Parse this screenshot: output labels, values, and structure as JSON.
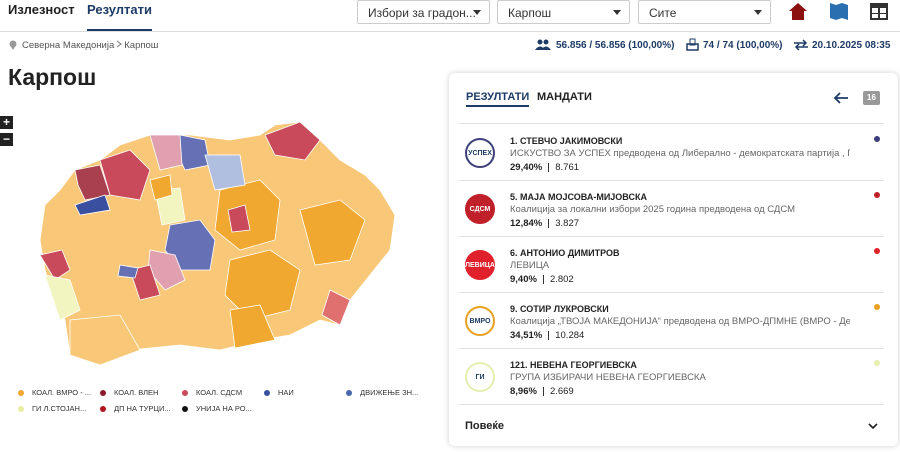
{
  "nav": {
    "tabs": [
      "Излезност",
      "Резултати"
    ],
    "dropdowns": [
      "Избори за градон...",
      "Карпош",
      "Сите"
    ]
  },
  "breadcrumb": [
    "Северна Македонија",
    "Карпош"
  ],
  "stats": {
    "voters": "56.856 / 56.856 (100,00%)",
    "stations": "74 / 74 (100,00%)",
    "updated": "20.10.2025 08:35"
  },
  "title": "Карпош",
  "map": {
    "zoom": [
      "+",
      "−"
    ],
    "legend": [
      {
        "label": "КОАЛ. ВМРО - ...",
        "color": "#f0a830"
      },
      {
        "label": "КОАЛ. ВЛЕН",
        "color": "#8b1a2b"
      },
      {
        "label": "КОАЛ. СДСМ",
        "color": "#c94a5a"
      },
      {
        "label": "НАИ",
        "color": "#3a4fa0"
      },
      {
        "label": "ДВИЖЕЊЕ ЗН...",
        "color": "#4a68b0"
      },
      {
        "label": "ГИ Л.СТОЈАН...",
        "color": "#e8eea0"
      },
      {
        "label": "ДП НА ТУРЦИ...",
        "color": "#b0141e"
      },
      {
        "label": "УНИЈА НА РО...",
        "color": "#111111"
      }
    ]
  },
  "panel": {
    "tabs": [
      "РЕЗУЛТАТИ",
      "МАНДАТИ"
    ],
    "badge": "16",
    "more": "Повеќе",
    "candidates": [
      {
        "name": "1. СТЕВЧО ЈАКИМОВСКИ",
        "party": "ИСКУСТВО ЗА УСПЕХ предводена од Либерално - демократската партија , Гра...",
        "percent": "29,40%",
        "votes": "8.761",
        "color": "#3d3f7a",
        "logo": "УСПЕХ"
      },
      {
        "name": "5. МАЈА МОЈСОВА-МИЈОВСКА",
        "party": "Коалиција за локални избори 2025 година предводена од СДСМ",
        "percent": "12,84%",
        "votes": "3.827",
        "color": "#c0202a",
        "logo": "СДСМ"
      },
      {
        "name": "6. АНТОНИО ДИМИТРОВ",
        "party": "ЛЕВИЦА",
        "percent": "9,40%",
        "votes": "2.802",
        "color": "#e0202a",
        "logo": "ЛЕВИЦА"
      },
      {
        "name": "9. СОТИР ЛУКРОВСКИ",
        "party": "Коалиција „ТВОЈА МАКЕДОНИЈА“ предводена од ВМРО-ДПМНЕ (ВМРО - Дем...",
        "percent": "34,51%",
        "votes": "10.284",
        "color": "#e8a020",
        "logo": "ВМРО"
      },
      {
        "name": "121. НЕВЕНА ГЕОРГИЕВСКА",
        "party": "ГРУПА ИЗБИРАЧИ НЕВЕНА ГЕОРГИЕВСКА",
        "percent": "8,96%",
        "votes": "2.669",
        "color": "#e6eeb0",
        "logo": "ГИ"
      }
    ]
  }
}
